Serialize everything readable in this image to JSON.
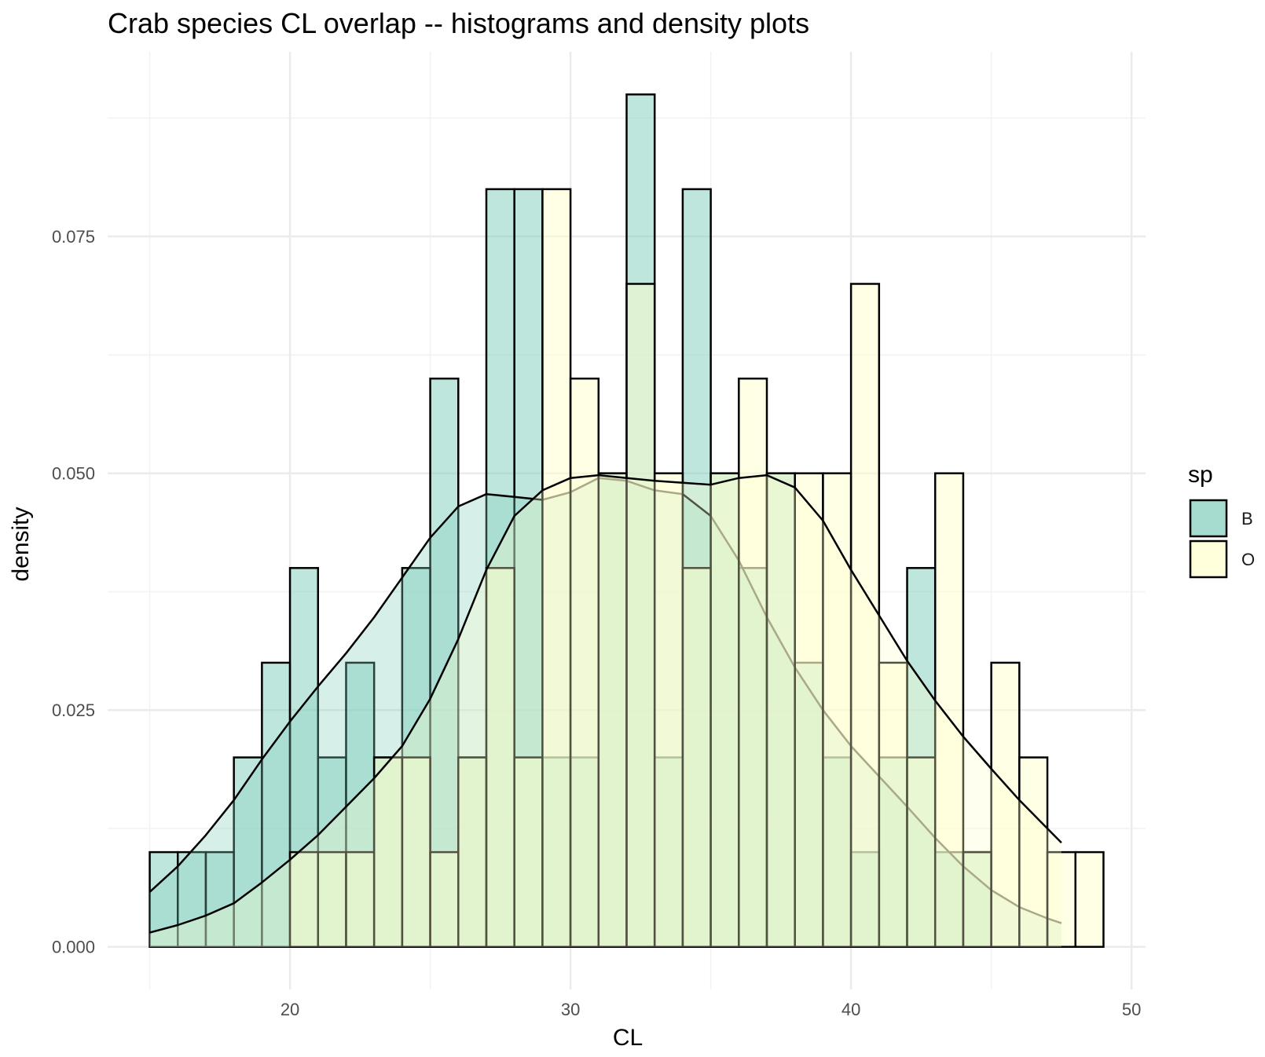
{
  "chart_data": {
    "type": "histogram+density",
    "title": "Crab species CL overlap -- histograms and density plots",
    "xlabel": "CL",
    "ylabel": "density",
    "xlim": [
      13.5,
      50.5
    ],
    "ylim": [
      -0.0045,
      0.0945
    ],
    "x_ticks": [
      20,
      30,
      40,
      50
    ],
    "x_tick_labels": [
      "20",
      "30",
      "40",
      "50"
    ],
    "y_ticks": [
      0,
      0.025,
      0.05,
      0.075
    ],
    "y_tick_labels": [
      "0.000",
      "0.025",
      "0.050",
      "0.075"
    ],
    "grid": true,
    "legend": {
      "title": "sp",
      "position": "right"
    },
    "bin_width": 1,
    "bin_starts": [
      15,
      16,
      17,
      18,
      19,
      20,
      21,
      22,
      23,
      24,
      25,
      26,
      27,
      28,
      29,
      30,
      31,
      32,
      33,
      34,
      35,
      36,
      37,
      38,
      39,
      40,
      41,
      42,
      43,
      44,
      45,
      46,
      47,
      48
    ],
    "series": [
      {
        "name": "B",
        "color": "#7fcdbb",
        "histogram": [
          0.01,
          0.01,
          0.01,
          0.02,
          0.03,
          0.04,
          0.02,
          0.03,
          0.02,
          0.04,
          0.06,
          0.02,
          0.08,
          0.08,
          0.02,
          0.02,
          0.05,
          0.09,
          0.02,
          0.08,
          0.05,
          0.04,
          0.05,
          0.03,
          0.02,
          0.01,
          0.02,
          0.04,
          0.01,
          0.01,
          0,
          0,
          0,
          0
        ],
        "density_x": [
          15,
          16,
          17,
          18,
          19,
          20,
          21,
          22,
          23,
          24,
          25,
          26,
          27,
          28,
          29,
          30,
          31,
          32,
          33,
          34,
          35,
          36,
          37,
          38,
          39,
          40,
          41,
          42,
          43,
          44,
          45,
          46,
          47,
          47.5
        ],
        "density_y": [
          0.0058,
          0.0085,
          0.0118,
          0.0155,
          0.0198,
          0.0238,
          0.0275,
          0.031,
          0.0348,
          0.039,
          0.0432,
          0.0465,
          0.0478,
          0.0475,
          0.0472,
          0.048,
          0.0495,
          0.0492,
          0.0482,
          0.0478,
          0.0455,
          0.0408,
          0.0348,
          0.0295,
          0.025,
          0.0212,
          0.018,
          0.0148,
          0.0115,
          0.0085,
          0.006,
          0.0042,
          0.003,
          0.0025
        ]
      },
      {
        "name": "O",
        "color": "#ffffcc",
        "histogram": [
          0,
          0,
          0,
          0,
          0,
          0.01,
          0.01,
          0.01,
          0.02,
          0.02,
          0.01,
          0.02,
          0.04,
          0.02,
          0.08,
          0.06,
          0.05,
          0.07,
          0.05,
          0.04,
          0.05,
          0.06,
          0.05,
          0.05,
          0.05,
          0.07,
          0.03,
          0.02,
          0.05,
          0.01,
          0.03,
          0.02,
          0.01,
          0.01
        ],
        "density_x": [
          15,
          16,
          17,
          18,
          19,
          20,
          21,
          22,
          23,
          24,
          25,
          26,
          27,
          28,
          29,
          30,
          31,
          32,
          33,
          34,
          35,
          36,
          37,
          38,
          39,
          40,
          41,
          42,
          43,
          44,
          45,
          46,
          47,
          47.5
        ],
        "density_y": [
          0.0015,
          0.0023,
          0.0033,
          0.0046,
          0.0068,
          0.0092,
          0.0118,
          0.0148,
          0.0178,
          0.0212,
          0.0262,
          0.0325,
          0.0398,
          0.0455,
          0.0482,
          0.0495,
          0.0498,
          0.0495,
          0.0492,
          0.049,
          0.0488,
          0.0495,
          0.0498,
          0.0485,
          0.045,
          0.0398,
          0.035,
          0.0302,
          0.026,
          0.0222,
          0.0188,
          0.0155,
          0.0125,
          0.011
        ]
      }
    ]
  }
}
